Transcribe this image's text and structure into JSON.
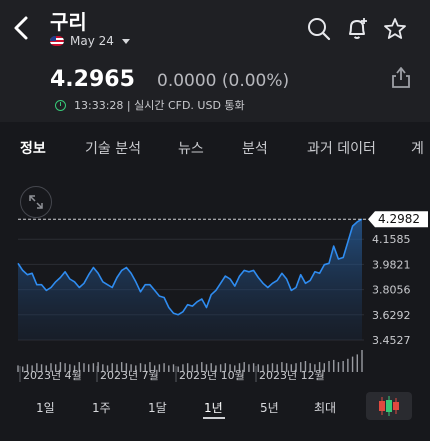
{
  "header": {
    "title": "구리",
    "date": "May 24"
  },
  "quote": {
    "price": "4.2965",
    "change": "0.0000 (0.00%)",
    "meta": "13:33:28 | 실시간 CFD. USD 통화"
  },
  "tabs": [
    "정보",
    "기술 분석",
    "뉴스",
    "분석",
    "과거 데이터",
    "계"
  ],
  "ranges": [
    "1일",
    "1주",
    "1달",
    "1년",
    "5년",
    "최대"
  ],
  "chart_data": {
    "type": "area",
    "current_label": "4.2982",
    "y_ticks": [
      "4.1585",
      "3.9821",
      "3.8056",
      "3.6292",
      "3.4527"
    ],
    "ylim": [
      3.4527,
      4.3349
    ],
    "x_ticks": [
      "2023년 4월",
      "2023년 7월",
      "2023년 10월",
      "2023년 12월"
    ],
    "values": [
      3.99,
      3.94,
      3.91,
      3.92,
      3.84,
      3.84,
      3.8,
      3.82,
      3.86,
      3.89,
      3.93,
      3.88,
      3.86,
      3.82,
      3.85,
      3.91,
      3.96,
      3.92,
      3.86,
      3.84,
      3.82,
      3.89,
      3.94,
      3.96,
      3.92,
      3.86,
      3.79,
      3.84,
      3.84,
      3.8,
      3.76,
      3.75,
      3.68,
      3.64,
      3.63,
      3.65,
      3.7,
      3.69,
      3.72,
      3.74,
      3.68,
      3.77,
      3.8,
      3.85,
      3.9,
      3.88,
      3.83,
      3.9,
      3.94,
      3.93,
      3.94,
      3.89,
      3.85,
      3.82,
      3.85,
      3.87,
      3.92,
      3.88,
      3.8,
      3.82,
      3.91,
      3.85,
      3.87,
      3.93,
      3.92,
      3.98,
      3.99,
      4.11,
      4.02,
      4.03,
      4.14,
      4.25,
      4.28,
      4.2982
    ],
    "volume": [
      6,
      5,
      7,
      6,
      8,
      7,
      6,
      8,
      7,
      9,
      8,
      7,
      6,
      9,
      8,
      7,
      8,
      9,
      7,
      6,
      8,
      7,
      9,
      8,
      7,
      6,
      8,
      7,
      9,
      6,
      7,
      8,
      6,
      7,
      5,
      7,
      8,
      6,
      7,
      9,
      7,
      8,
      6,
      7,
      8,
      7,
      6,
      8,
      9,
      7,
      8,
      7,
      6,
      7,
      8,
      7,
      9,
      8,
      7,
      8,
      9,
      10,
      8,
      7,
      9,
      8,
      10,
      11,
      9,
      10,
      12,
      14,
      16,
      20
    ],
    "grid": true
  }
}
